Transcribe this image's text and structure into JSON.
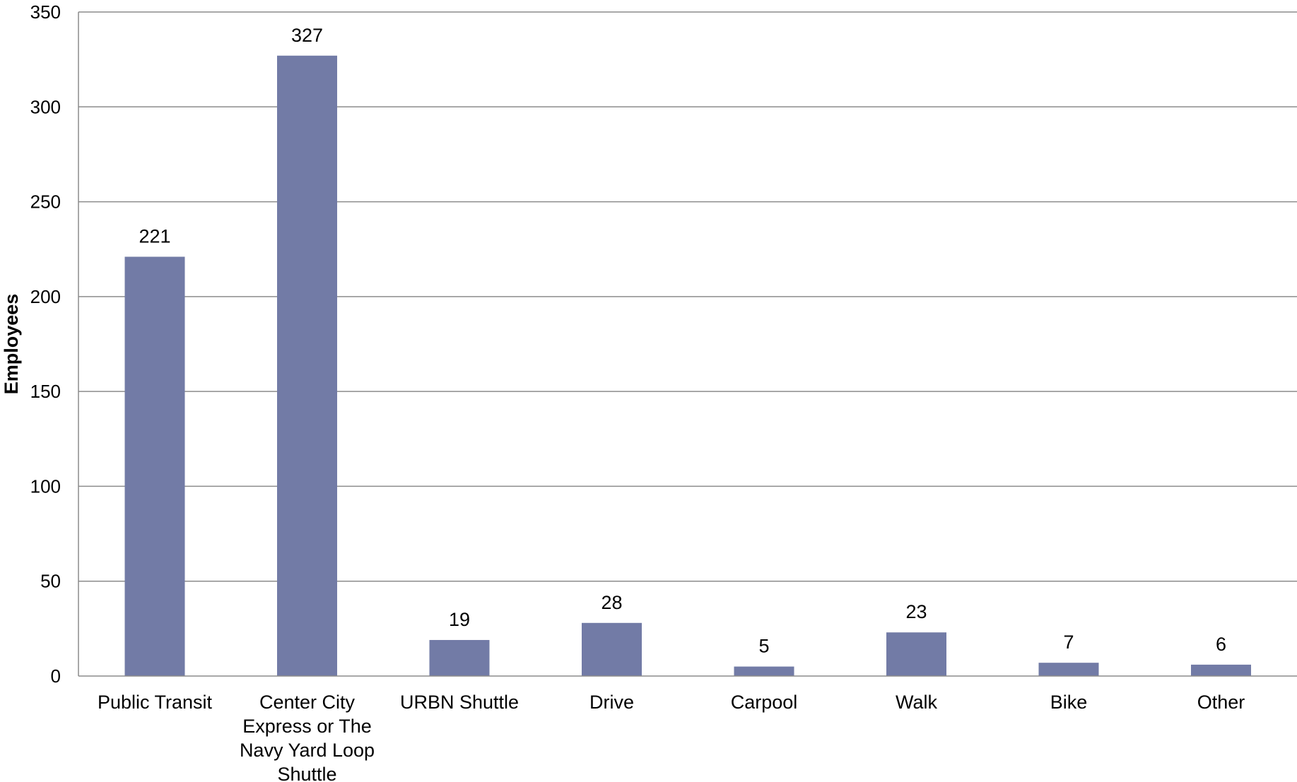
{
  "chart_data": {
    "type": "bar",
    "title": "",
    "xlabel": "",
    "ylabel": "Employees",
    "ylim": [
      0,
      350
    ],
    "yticks": [
      0,
      50,
      100,
      150,
      200,
      250,
      300,
      350
    ],
    "grid": true,
    "legend": "none",
    "bar_color": "#727ba6",
    "categories": [
      [
        "Public Transit"
      ],
      [
        "Center City",
        "Express or The",
        "Navy Yard Loop",
        "Shuttle"
      ],
      [
        "URBN Shuttle"
      ],
      [
        "Drive"
      ],
      [
        "Carpool"
      ],
      [
        "Walk"
      ],
      [
        "Bike"
      ],
      [
        "Other"
      ]
    ],
    "values": [
      221,
      327,
      19,
      28,
      5,
      23,
      7,
      6
    ],
    "data_labels": [
      "221",
      "327",
      "19",
      "28",
      "5",
      "23",
      "7",
      "6"
    ]
  }
}
